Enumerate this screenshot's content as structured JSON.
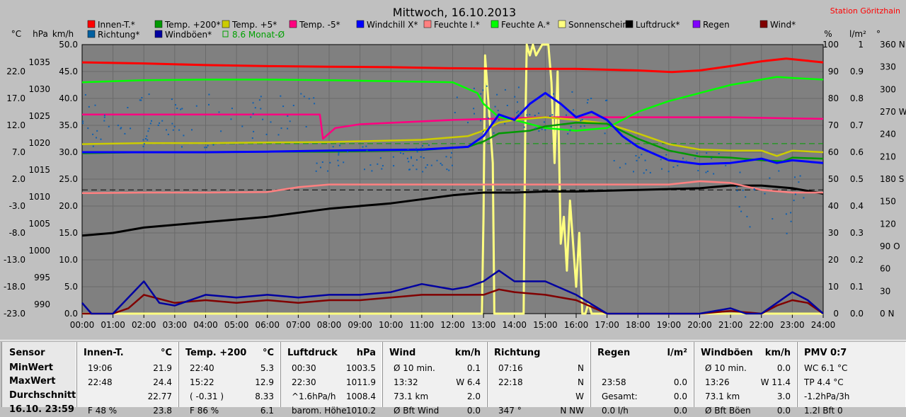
{
  "header": {
    "title": "Mittwoch, 16.10.2013",
    "station": "Station Göritzhain"
  },
  "axes": {
    "c_unit": "°C",
    "hpa_unit": "hPa",
    "kmh_unit": "km/h",
    "pct_unit": "%",
    "lm2_unit": "l/m²",
    "deg_unit": "°",
    "c_ticks": [
      "22.0",
      "17.0",
      "12.0",
      "7.0",
      "2.0",
      "-3.0",
      "-8.0",
      "-13.0",
      "-18.0",
      "-23.0"
    ],
    "hpa_ticks": [
      "1035",
      "1030",
      "1025",
      "1020",
      "1015",
      "1010",
      "1005",
      "1000",
      "995",
      "990"
    ],
    "kmh_ticks": [
      "50.0",
      "45.0",
      "40.0",
      "35.0",
      "30.0",
      "25.0",
      "20.0",
      "15.0",
      "10.0",
      "5.0",
      "0.0"
    ],
    "pct_ticks": [
      "100",
      "90",
      "80",
      "70",
      "60",
      "50",
      "40",
      "30",
      "20",
      "10",
      "0"
    ],
    "lm2_ticks": [
      "1",
      "0.9",
      "0.8",
      "0.7",
      "0.6",
      "0.5",
      "0.4",
      "0.3",
      "0.2",
      "0.1",
      "0.0"
    ],
    "deg_ticks": [
      "360 N",
      "330",
      "300",
      "270 W",
      "240",
      "210",
      "180 S",
      "150",
      "120",
      "90 O",
      "60",
      "30",
      "0 N"
    ],
    "x_ticks": [
      "00:00",
      "01:00",
      "02:00",
      "03:00",
      "04:00",
      "05:00",
      "06:00",
      "07:00",
      "08:00",
      "09:00",
      "10:00",
      "11:00",
      "12:00",
      "13:00",
      "14:00",
      "15:00",
      "16:00",
      "17:00",
      "18:00",
      "19:00",
      "20:00",
      "21:00",
      "22:00",
      "23:00",
      "24:00"
    ]
  },
  "legend": [
    {
      "label": "Innen-T.*",
      "color": "#ff0000"
    },
    {
      "label": "Temp. +200*",
      "color": "#009900"
    },
    {
      "label": "Temp. +5*",
      "color": "#cccc00"
    },
    {
      "label": "Temp. -5*",
      "color": "#ff0080"
    },
    {
      "label": "Windchill X*",
      "color": "#0000ff"
    },
    {
      "label": "Feuchte I.*",
      "color": "#ff8080"
    },
    {
      "label": "Feuchte A.*",
      "color": "#00ff00"
    },
    {
      "label": "Sonnenschein*",
      "color": "#ffff80"
    },
    {
      "label": "Luftdruck*",
      "color": "#000000"
    },
    {
      "label": "Regen",
      "color": "#8000ff"
    },
    {
      "label": "Wind*",
      "color": "#800000"
    },
    {
      "label": "Richtung*",
      "color": "#0060a0"
    },
    {
      "label": "Windböen*",
      "color": "#0000a0"
    },
    {
      "label": "8.6 Monat-Ø",
      "color": "#00a000"
    }
  ],
  "chart_data": {
    "type": "line",
    "x_unit": "hour of day",
    "xlim": [
      0,
      24
    ],
    "ylim": [
      -23,
      27
    ],
    "series": [
      {
        "name": "Innen-T.*",
        "color": "#ff0000",
        "x": [
          0,
          2,
          4,
          6,
          8,
          10,
          12,
          14,
          16,
          18,
          19.1,
          20,
          21,
          22,
          22.8,
          24
        ],
        "y": [
          23.7,
          23.5,
          23.2,
          23.0,
          22.9,
          22.8,
          22.6,
          22.5,
          22.5,
          22.2,
          21.9,
          22.2,
          23.0,
          23.9,
          24.4,
          23.7
        ]
      },
      {
        "name": "Temp. +200*",
        "color": "#009900",
        "x": [
          0,
          2,
          4,
          6,
          8,
          11,
          12.5,
          13,
          13.5,
          14.5,
          15,
          16,
          17,
          18,
          19,
          20,
          21,
          22,
          22.7,
          23,
          24
        ],
        "y": [
          6.8,
          7.0,
          7.0,
          7.1,
          7.1,
          7.4,
          8.0,
          9.0,
          10.5,
          11.0,
          11.8,
          12.5,
          12.3,
          9.5,
          7.3,
          6.2,
          6.0,
          5.5,
          5.3,
          6.0,
          5.8
        ]
      },
      {
        "name": "Temp. +5*",
        "color": "#cccc00",
        "x": [
          0,
          2,
          4,
          6,
          8,
          11,
          12.5,
          13,
          13.5,
          14,
          15,
          16,
          17,
          18,
          19,
          20,
          21,
          22,
          22.5,
          23,
          24
        ],
        "y": [
          8.5,
          8.7,
          8.7,
          8.8,
          8.9,
          9.3,
          10.0,
          11.0,
          12.5,
          13.0,
          13.5,
          13.0,
          12.3,
          10.5,
          8.5,
          7.5,
          7.3,
          7.3,
          6.3,
          7.3,
          7.0
        ]
      },
      {
        "name": "Temp. -5*",
        "color": "#ff0080",
        "x": [
          0,
          2,
          4,
          6,
          7.7,
          7.8,
          8.2,
          9,
          12,
          15,
          18,
          21,
          24
        ],
        "y": [
          14.0,
          14.0,
          14.0,
          14.0,
          14.0,
          9.5,
          11.5,
          12.2,
          13.0,
          13.5,
          13.5,
          13.5,
          13.2
        ]
      },
      {
        "name": "Windchill X*",
        "color": "#0000ff",
        "x": [
          0,
          2,
          4,
          6,
          8,
          11,
          12.5,
          13,
          13.5,
          14,
          14.5,
          15,
          15.5,
          16,
          16.5,
          17,
          17.5,
          18,
          19,
          20,
          21,
          22,
          22.5,
          23,
          24
        ],
        "y": [
          7.0,
          7.0,
          7.0,
          7.1,
          7.3,
          7.5,
          8.0,
          10.0,
          14.0,
          13.0,
          16.0,
          18.0,
          16.0,
          13.5,
          14.5,
          13.0,
          10.0,
          8.0,
          5.5,
          4.8,
          5.0,
          5.8,
          5.0,
          5.5,
          5.0
        ]
      },
      {
        "name": "Feuchte I.*",
        "color": "#ff8080",
        "x": [
          0,
          2,
          4,
          6,
          7,
          8,
          10,
          12,
          14,
          16,
          18,
          19,
          20,
          21,
          22,
          23,
          24
        ],
        "y": [
          -0.6,
          -0.5,
          -0.5,
          -0.4,
          0.5,
          1.0,
          1.0,
          1.0,
          1.0,
          1.0,
          1.0,
          1.0,
          1.6,
          1.3,
          0.0,
          -0.5,
          -0.5
        ]
      },
      {
        "name": "Feuchte A.*",
        "color": "#00ff00",
        "x": [
          0,
          2,
          4,
          6,
          8,
          10,
          12,
          12.8,
          13,
          13.5,
          14,
          15,
          16,
          17,
          17.5,
          18,
          19,
          20,
          21,
          22,
          22.5,
          23,
          24
        ],
        "y": [
          20.0,
          20.4,
          20.5,
          20.5,
          20.4,
          20.2,
          20.0,
          18.0,
          16.0,
          13.5,
          13.0,
          11.5,
          11.0,
          11.5,
          13.0,
          14.5,
          16.5,
          18.0,
          19.5,
          20.5,
          21.0,
          20.8,
          20.5
        ]
      },
      {
        "name": "Luftdruck*",
        "color": "#000000",
        "x": [
          0,
          1,
          2,
          4,
          6,
          8,
          10,
          12,
          13,
          14,
          15,
          16,
          18,
          20,
          21,
          22,
          23,
          24
        ],
        "y": [
          -8.5,
          -8.0,
          -7.0,
          -6.0,
          -5.0,
          -3.5,
          -2.5,
          -1.0,
          -0.5,
          -0.5,
          -0.3,
          -0.3,
          0.0,
          0.3,
          0.8,
          0.8,
          0.3,
          -0.7
        ]
      },
      {
        "name": "Wind*",
        "color": "#800000",
        "x": [
          0,
          1,
          1.5,
          2,
          3,
          4,
          5,
          6,
          7,
          8,
          9,
          10,
          11,
          12,
          13,
          13.5,
          14,
          15,
          16,
          17,
          18,
          20,
          21,
          22,
          22.5,
          23,
          23.5,
          24
        ],
        "y": [
          -23,
          -23,
          -22,
          -19.5,
          -21,
          -20.5,
          -21,
          -20.5,
          -21,
          -20.5,
          -20.5,
          -20,
          -19.5,
          -19.5,
          -19.5,
          -18.5,
          -19,
          -19.5,
          -20.5,
          -23,
          -23,
          -23,
          -22.5,
          -23,
          -21.5,
          -20.5,
          -21,
          -23
        ]
      },
      {
        "name": "Windböen*",
        "color": "#0000a0",
        "x": [
          0,
          0.3,
          1,
          1.5,
          2,
          2.5,
          3,
          4,
          5,
          6,
          7,
          8,
          9,
          10,
          11,
          12,
          12.5,
          13,
          13.5,
          14,
          15,
          16,
          17,
          18,
          20,
          21,
          21.5,
          22,
          22.5,
          23,
          23.5,
          24
        ],
        "y": [
          -21,
          -23,
          -23,
          -20,
          -17,
          -21,
          -21.5,
          -19.5,
          -20,
          -19.5,
          -20,
          -19.5,
          -19.5,
          -19,
          -17.5,
          -18.5,
          -18,
          -17,
          -15,
          -17,
          -17,
          -19.5,
          -23,
          -23,
          -23,
          -22,
          -23,
          -23,
          -21,
          -19,
          -20.5,
          -23
        ]
      },
      {
        "name": "Sonnenschein*",
        "color": "#ffff80",
        "x": [
          0,
          12.95,
          13.0,
          13.05,
          13.3,
          13.35,
          13.4,
          14.3,
          14.35,
          14.4,
          14.5,
          14.6,
          14.7,
          14.9,
          15.0,
          15.1,
          15.2,
          15.3,
          15.4,
          15.5,
          15.6,
          15.7,
          15.8,
          16.0,
          16.1,
          16.2,
          16.3,
          16.4,
          16.5,
          16.6,
          16.7,
          16.8,
          16.9,
          17.0,
          24
        ],
        "y": [
          -23,
          -23,
          -5,
          25,
          5,
          -23,
          -23,
          -23,
          10,
          27,
          25,
          27,
          25,
          27,
          27,
          27,
          20,
          5,
          22,
          -10,
          -5,
          -15,
          -2,
          -18,
          -8,
          -23,
          -23,
          -21,
          -23,
          -23,
          -23,
          -23,
          -23,
          -23,
          -23
        ]
      }
    ],
    "threshold_lines": [
      {
        "name": "8.6 Monat-Ø",
        "color": "#00a000",
        "y": 8.6,
        "style": "dashed"
      },
      {
        "name": "0",
        "color": "#000000",
        "y": 0,
        "style": "dashed"
      }
    ]
  },
  "stats": {
    "col0": {
      "header": "Sensor",
      "row1": "MinWert",
      "row2": "MaxWert",
      "row3": "Durchschnitt",
      "row4": "16.10. 23:59"
    },
    "innen": {
      "header": "Innen-T.",
      "unit": "°C",
      "r1a": "19:06",
      "r1b": "21.9",
      "r2a": "22:48",
      "r2b": "24.4",
      "r3b": "22.77",
      "r4a": "F 48 %",
      "r4b": "23.8"
    },
    "temp": {
      "header": "Temp. +200",
      "unit": "°C",
      "r1a": "22:40",
      "r1b": "5.3",
      "r2a": "15:22",
      "r2b": "12.9",
      "r3a": "( -0.31 )",
      "r3b": "8.33",
      "r4a": "F 86 %",
      "r4b": "6.1"
    },
    "luft": {
      "header": "Luftdruck",
      "unit": "hPa",
      "r1a": "00:30",
      "r1b": "1003.5",
      "r2a": "22:30",
      "r2b": "1011.9",
      "r3a": "^1.6hPa/h",
      "r3b": "1008.4",
      "r4a": "barom. Höhe",
      "r4b": "1010.2"
    },
    "wind": {
      "header": "Wind",
      "unit": "km/h",
      "r1a": "Ø 10 min.",
      "r1b": "0.1",
      "r2a": "13:32",
      "r2b": "W 6.4",
      "r3a": "73.1 km",
      "r3b": "2.0",
      "r4a": "Ø Bft Wind",
      "r4b": "0.0"
    },
    "richt": {
      "header": "Richtung",
      "unit": "",
      "r1a": "07:16",
      "r1b": "N",
      "r2a": "22:18",
      "r2b": "N",
      "r3b": "W",
      "r4a": "347 °",
      "r4b": "N NW"
    },
    "regen": {
      "header": "Regen",
      "unit": "l/m²",
      "r2a": "23:58",
      "r2b": "0.0",
      "r3a": "Gesamt:",
      "r3b": "0.0",
      "r4a": "0.0 l/h",
      "r4b": "0.0"
    },
    "boen": {
      "header": "Windböen",
      "unit": "km/h",
      "r1a": "Ø 10 min.",
      "r1b": "0.0",
      "r2a": "13:26",
      "r2b": "W 11.4",
      "r3a": "73.1 km",
      "r3b": "3.0",
      "r4a": "Ø Bft Böen",
      "r4b": "0.0"
    },
    "pmv": {
      "header": "PMV 0:7",
      "r1": "WC 6.1 °C",
      "r2": "TP 4.4 °C",
      "r3": "-1.2hPa/3h",
      "r4": "1.2l Bft 0"
    }
  }
}
